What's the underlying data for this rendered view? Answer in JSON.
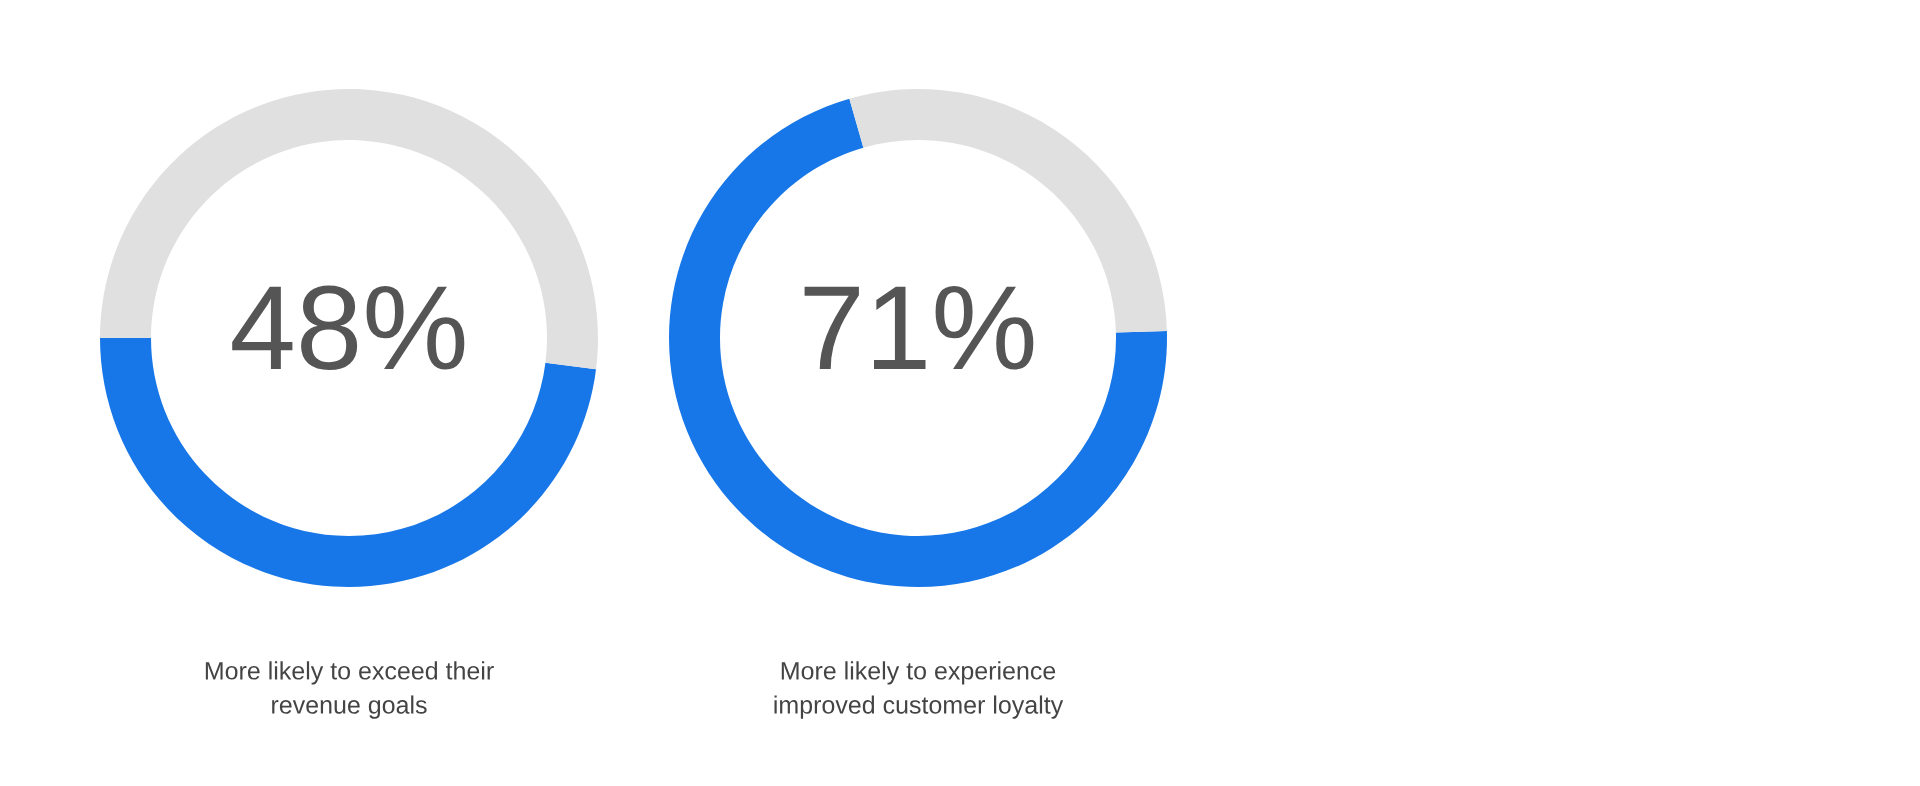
{
  "chart_data": [
    {
      "type": "donut",
      "title": "More likely to exceed their\nrevenue goals",
      "categories": [
        null,
        null
      ],
      "values": [
        48,
        52
      ],
      "colors": [
        "#1877e8",
        "#e0e0e0"
      ],
      "annotations": [
        "48%"
      ]
    },
    {
      "type": "donut",
      "title": "More likely to experience\nimproved customer loyalty",
      "categories": [
        null,
        null
      ],
      "values": [
        71,
        29
      ],
      "colors": [
        "#1877e8",
        "#e0e0e0"
      ],
      "annotations": [
        "71%"
      ]
    }
  ]
}
